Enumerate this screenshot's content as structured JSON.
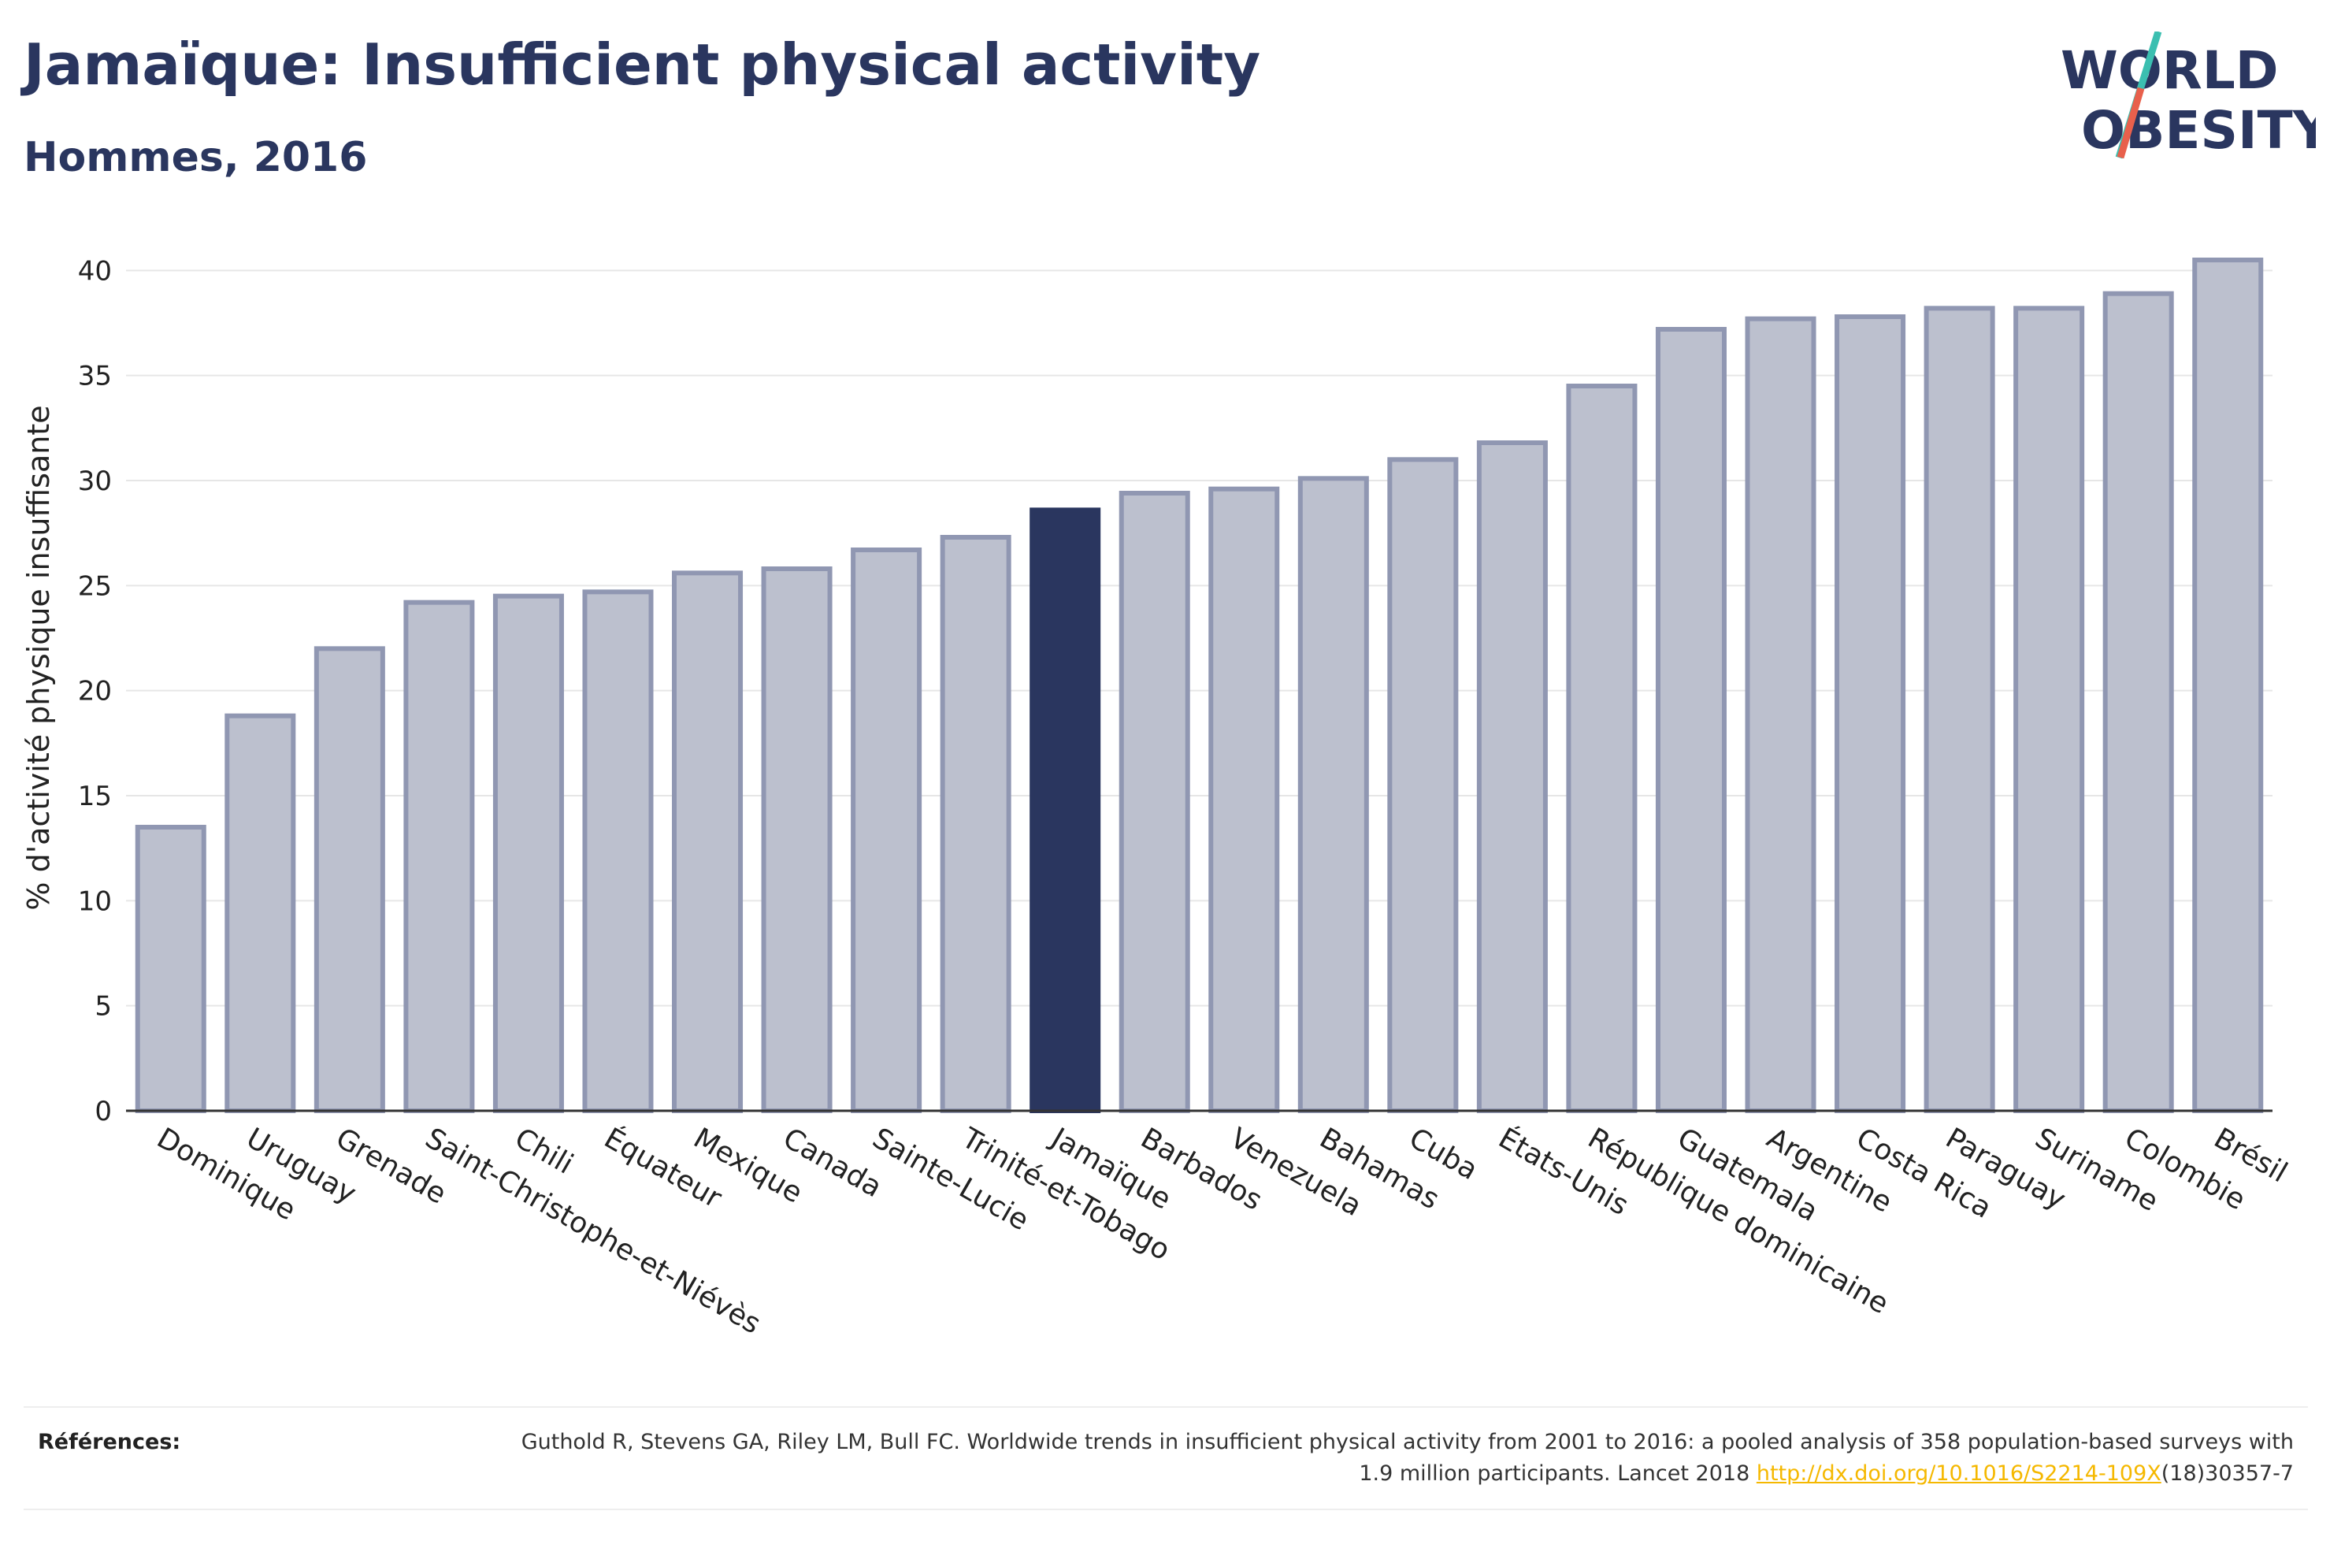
{
  "header": {
    "title": "Jamaïque: Insufficient physical activity",
    "subtitle": "Hommes, 2016"
  },
  "logo": {
    "line1": "WORLD",
    "line2": "OBESITY",
    "accent_teal": "#3bbfb0",
    "accent_coral": "#e8604c"
  },
  "colors": {
    "bar": "#bcc0ce",
    "bar_stroke": "#9097b2",
    "highlight": "#2a365f",
    "grid": "#e6e6e6",
    "axis": "#333333"
  },
  "chart_data": {
    "type": "bar",
    "ylabel": "% d'activité physique insuffisante",
    "xlabel": "",
    "ylim": [
      0,
      42
    ],
    "yticks": [
      0,
      5,
      10,
      15,
      20,
      25,
      30,
      35,
      40
    ],
    "grid": true,
    "highlight": "Jamaïque",
    "categories": [
      "Dominique",
      "Uruguay",
      "Grenade",
      "Saint-Christophe-et-Niévès",
      "Chili",
      "Équateur",
      "Mexique",
      "Canada",
      "Sainte-Lucie",
      "Trinité-et-Tobago",
      "Jamaïque",
      "Barbados",
      "Venezuela",
      "Bahamas",
      "Cuba",
      "États-Unis",
      "République dominicaine",
      "Guatemala",
      "Argentine",
      "Costa Rica",
      "Paraguay",
      "Suriname",
      "Colombie",
      "Brésil"
    ],
    "values": [
      13.5,
      18.8,
      22.0,
      24.2,
      24.5,
      24.7,
      25.6,
      25.8,
      26.7,
      27.3,
      28.6,
      29.4,
      29.6,
      30.1,
      31.0,
      31.8,
      34.5,
      37.2,
      37.7,
      37.8,
      38.2,
      38.2,
      38.9,
      40.5
    ]
  },
  "references": {
    "label": "Références:",
    "text": "Guthold R, Stevens GA, Riley LM, Bull FC. Worldwide trends in insufficient physical activity from 2001 to 2016: a pooled analysis of 358 population-based surveys with 1.9 million participants. Lancet 2018 ",
    "link": "http://dx.doi.org/10.1016/S2214-109X",
    "suffix": "(18)30357-7"
  }
}
